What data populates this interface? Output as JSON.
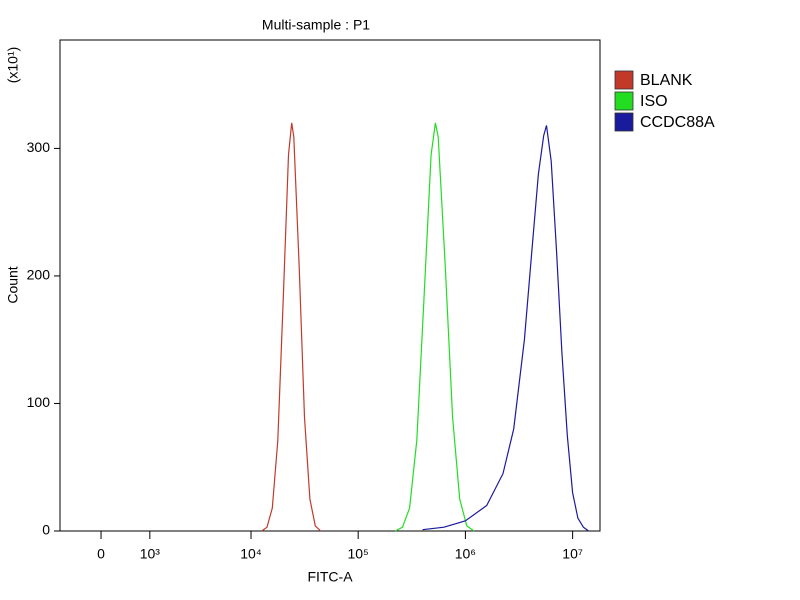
{
  "chart_data": {
    "type": "line",
    "title": "Multi-sample : P1",
    "xlabel": "FITC-A",
    "ylabel": "Count",
    "y_multiplier": "(x10¹)",
    "xscale": "biexponential",
    "xlim": [
      -800,
      18000000
    ],
    "xticks": [
      0,
      {
        "value": 1000,
        "label": "10³"
      },
      {
        "value": 10000,
        "label": "10⁴"
      },
      {
        "value": 100000,
        "label": "10⁵"
      },
      {
        "value": 1000000,
        "label": "10⁶"
      },
      {
        "value": 10000000,
        "label": "10⁷"
      }
    ],
    "ylim": [
      0,
      385
    ],
    "yticks": [
      0,
      100,
      200,
      300
    ],
    "legend": "right",
    "series": [
      {
        "name": "BLANK",
        "color": "#c0392b",
        "x": [
          12600,
          14100,
          15800,
          17800,
          20000,
          22400,
          24000,
          25100,
          28200,
          31600,
          35500,
          39800,
          44700
        ],
        "values": [
          0,
          3,
          18,
          71,
          181,
          295,
          320,
          309,
          207,
          89,
          25,
          4,
          0
        ]
      },
      {
        "name": "ISO",
        "color": "#22dd22",
        "x": [
          222000,
          259000,
          302000,
          352000,
          410000,
          479000,
          525000,
          558000,
          650000,
          759000,
          885000,
          1030000,
          1200000
        ],
        "values": [
          0,
          3,
          18,
          71,
          181,
          295,
          320,
          309,
          207,
          89,
          25,
          4,
          0
        ]
      },
      {
        "name": "CCDC88A",
        "color": "#1a1a9c",
        "x": [
          398000,
          631000,
          1000000,
          1580000,
          2240000,
          2820000,
          3550000,
          4170000,
          4790000,
          5370000,
          5710000,
          6310000,
          7080000,
          7940000,
          8910000,
          10000000,
          11200000,
          12600000,
          14100000
        ],
        "values": [
          1,
          3,
          8,
          20,
          45,
          80,
          150,
          220,
          280,
          310,
          318,
          290,
          220,
          140,
          75,
          30,
          10,
          3,
          0
        ]
      }
    ]
  }
}
